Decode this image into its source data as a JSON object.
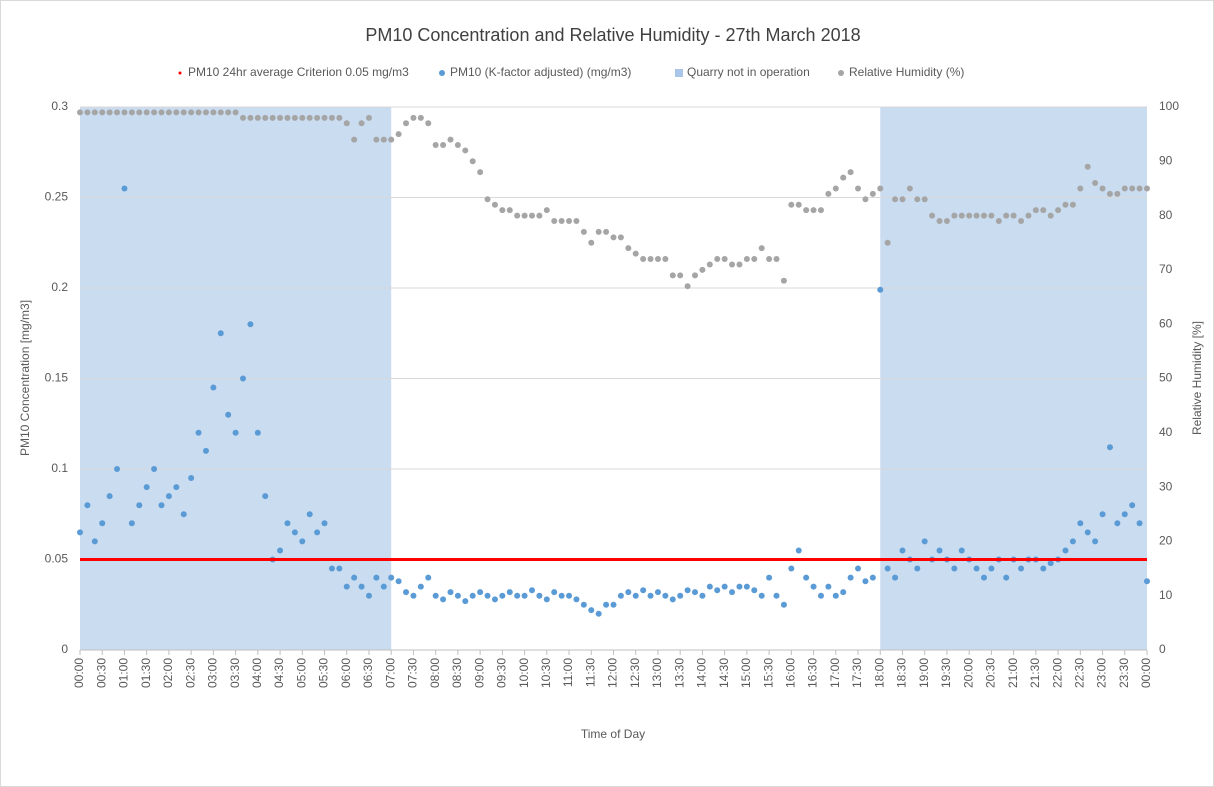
{
  "chart_data": {
    "type": "scatter",
    "title": "PM10 Concentration and Relative Humidity - 27th March 2018",
    "x_label": "Time of Day",
    "y_label": "PM10 Concentration [mg/m3]",
    "y2_label": "Relative Humidity [%]",
    "grid": true,
    "legend": "top",
    "x": [
      0,
      10,
      20,
      30,
      40,
      50,
      60,
      70,
      80,
      90,
      100,
      110,
      120,
      130,
      140,
      150,
      160,
      170,
      180,
      190,
      200,
      210,
      220,
      230,
      240,
      250,
      260,
      270,
      280,
      290,
      300,
      310,
      320,
      330,
      340,
      350,
      360,
      370,
      380,
      390,
      400,
      410,
      420,
      430,
      440,
      450,
      460,
      470,
      480,
      490,
      500,
      510,
      520,
      530,
      540,
      550,
      560,
      570,
      580,
      590,
      600,
      610,
      620,
      630,
      640,
      650,
      660,
      670,
      680,
      690,
      700,
      710,
      720,
      730,
      740,
      750,
      760,
      770,
      780,
      790,
      800,
      810,
      820,
      830,
      840,
      850,
      860,
      870,
      880,
      890,
      900,
      910,
      920,
      930,
      940,
      950,
      960,
      970,
      980,
      990,
      1000,
      1010,
      1020,
      1030,
      1040,
      1050,
      1060,
      1070,
      1080,
      1090,
      1100,
      1110,
      1120,
      1130,
      1140,
      1150,
      1160,
      1170,
      1180,
      1190,
      1200,
      1210,
      1220,
      1230,
      1240,
      1250,
      1260,
      1270,
      1280,
      1290,
      1300,
      1310,
      1320,
      1330,
      1340,
      1350,
      1360,
      1370,
      1380,
      1390,
      1400,
      1410,
      1420,
      1430,
      1440
    ],
    "xlim": [
      0,
      1440
    ],
    "xticks": [
      {
        "value": 0,
        "label": "00:00"
      },
      {
        "value": 30,
        "label": "00:30"
      },
      {
        "value": 60,
        "label": "01:00"
      },
      {
        "value": 90,
        "label": "01:30"
      },
      {
        "value": 120,
        "label": "02:00"
      },
      {
        "value": 150,
        "label": "02:30"
      },
      {
        "value": 180,
        "label": "03:00"
      },
      {
        "value": 210,
        "label": "03:30"
      },
      {
        "value": 240,
        "label": "04:00"
      },
      {
        "value": 270,
        "label": "04:30"
      },
      {
        "value": 300,
        "label": "05:00"
      },
      {
        "value": 330,
        "label": "05:30"
      },
      {
        "value": 360,
        "label": "06:00"
      },
      {
        "value": 390,
        "label": "06:30"
      },
      {
        "value": 420,
        "label": "07:00"
      },
      {
        "value": 450,
        "label": "07:30"
      },
      {
        "value": 480,
        "label": "08:00"
      },
      {
        "value": 510,
        "label": "08:30"
      },
      {
        "value": 540,
        "label": "09:00"
      },
      {
        "value": 570,
        "label": "09:30"
      },
      {
        "value": 600,
        "label": "10:00"
      },
      {
        "value": 630,
        "label": "10:30"
      },
      {
        "value": 660,
        "label": "11:00"
      },
      {
        "value": 690,
        "label": "11:30"
      },
      {
        "value": 720,
        "label": "12:00"
      },
      {
        "value": 750,
        "label": "12:30"
      },
      {
        "value": 780,
        "label": "13:00"
      },
      {
        "value": 810,
        "label": "13:30"
      },
      {
        "value": 840,
        "label": "14:00"
      },
      {
        "value": 870,
        "label": "14:30"
      },
      {
        "value": 900,
        "label": "15:00"
      },
      {
        "value": 930,
        "label": "15:30"
      },
      {
        "value": 960,
        "label": "16:00"
      },
      {
        "value": 990,
        "label": "16:30"
      },
      {
        "value": 1020,
        "label": "17:00"
      },
      {
        "value": 1050,
        "label": "17:30"
      },
      {
        "value": 1080,
        "label": "18:00"
      },
      {
        "value": 1110,
        "label": "18:30"
      },
      {
        "value": 1140,
        "label": "19:00"
      },
      {
        "value": 1170,
        "label": "19:30"
      },
      {
        "value": 1200,
        "label": "20:00"
      },
      {
        "value": 1230,
        "label": "20:30"
      },
      {
        "value": 1260,
        "label": "21:00"
      },
      {
        "value": 1290,
        "label": "21:30"
      },
      {
        "value": 1320,
        "label": "22:00"
      },
      {
        "value": 1350,
        "label": "22:30"
      },
      {
        "value": 1380,
        "label": "23:00"
      },
      {
        "value": 1410,
        "label": "23:30"
      },
      {
        "value": 1440,
        "label": "00:00"
      }
    ],
    "ylim": [
      0,
      0.3
    ],
    "yticks": [
      0,
      0.05,
      0.1,
      0.15,
      0.2,
      0.25,
      0.3
    ],
    "y2lim": [
      0,
      100
    ],
    "y2ticks": [
      0,
      10,
      20,
      30,
      40,
      50,
      60,
      70,
      80,
      90,
      100
    ],
    "criterion": {
      "name": "PM10 24hr average Criterion 0.05 mg/m3",
      "value": 0.05,
      "color": "#ff0000"
    },
    "shading": {
      "name": "Quarry not in operation",
      "color": "#c9dcf0",
      "ranges": [
        [
          0,
          420
        ],
        [
          1080,
          1440
        ]
      ]
    },
    "series": [
      {
        "name": "PM10 (K-factor adjusted) (mg/m3)",
        "color": "#5b9bd5",
        "axis": "y",
        "values": [
          0.065,
          0.08,
          0.06,
          0.07,
          0.085,
          0.1,
          0.255,
          0.07,
          0.08,
          0.09,
          0.1,
          0.08,
          0.085,
          0.09,
          0.075,
          0.095,
          0.12,
          0.11,
          0.145,
          0.175,
          0.13,
          0.12,
          0.15,
          0.18,
          0.12,
          0.085,
          0.05,
          0.055,
          0.07,
          0.065,
          0.06,
          0.075,
          0.065,
          0.07,
          0.045,
          0.045,
          0.035,
          0.04,
          0.035,
          0.03,
          0.04,
          0.035,
          0.04,
          0.038,
          0.032,
          0.03,
          0.035,
          0.04,
          0.03,
          0.028,
          0.032,
          0.03,
          0.027,
          0.03,
          0.032,
          0.03,
          0.028,
          0.03,
          0.032,
          0.03,
          0.03,
          0.033,
          0.03,
          0.028,
          0.032,
          0.03,
          0.03,
          0.028,
          0.025,
          0.022,
          0.02,
          0.025,
          0.025,
          0.03,
          0.032,
          0.03,
          0.033,
          0.03,
          0.032,
          0.03,
          0.028,
          0.03,
          0.033,
          0.032,
          0.03,
          0.035,
          0.033,
          0.035,
          0.032,
          0.035,
          0.035,
          0.033,
          0.03,
          0.04,
          0.03,
          0.025,
          0.045,
          0.055,
          0.04,
          0.035,
          0.03,
          0.035,
          0.03,
          0.032,
          0.04,
          0.045,
          0.038,
          0.04,
          0.199,
          0.045,
          0.04,
          0.055,
          0.05,
          0.045,
          0.06,
          0.05,
          0.055,
          0.05,
          0.045,
          0.055,
          0.05,
          0.045,
          0.04,
          0.045,
          0.05,
          0.04,
          0.05,
          0.045,
          0.05,
          0.05,
          0.045,
          0.048,
          0.05,
          0.055,
          0.06,
          0.07,
          0.065,
          0.06,
          0.075,
          0.112,
          0.07,
          0.075,
          0.08,
          0.07,
          0.038
        ]
      },
      {
        "name": "Relative Humidity (%)",
        "color": "#a5a5a5",
        "axis": "y2",
        "values": [
          99,
          99,
          99,
          99,
          99,
          99,
          99,
          99,
          99,
          99,
          99,
          99,
          99,
          99,
          99,
          99,
          99,
          99,
          99,
          99,
          99,
          99,
          98,
          98,
          98,
          98,
          98,
          98,
          98,
          98,
          98,
          98,
          98,
          98,
          98,
          98,
          97,
          94,
          97,
          98,
          94,
          94,
          94,
          95,
          97,
          98,
          98,
          97,
          93,
          93,
          94,
          93,
          92,
          90,
          88,
          83,
          82,
          81,
          81,
          80,
          80,
          80,
          80,
          81,
          79,
          79,
          79,
          79,
          77,
          75,
          77,
          77,
          76,
          76,
          74,
          73,
          72,
          72,
          72,
          72,
          69,
          69,
          67,
          69,
          70,
          71,
          72,
          72,
          71,
          71,
          72,
          72,
          74,
          72,
          72,
          68,
          82,
          82,
          81,
          81,
          81,
          84,
          85,
          87,
          88,
          85,
          83,
          84,
          85,
          75,
          83,
          83,
          85,
          83,
          83,
          80,
          79,
          79,
          80,
          80,
          80,
          80,
          80,
          80,
          79,
          80,
          80,
          79,
          80,
          81,
          81,
          80,
          81,
          82,
          82,
          85,
          89,
          86,
          85,
          84,
          84,
          85,
          85,
          85,
          85
        ]
      }
    ]
  }
}
